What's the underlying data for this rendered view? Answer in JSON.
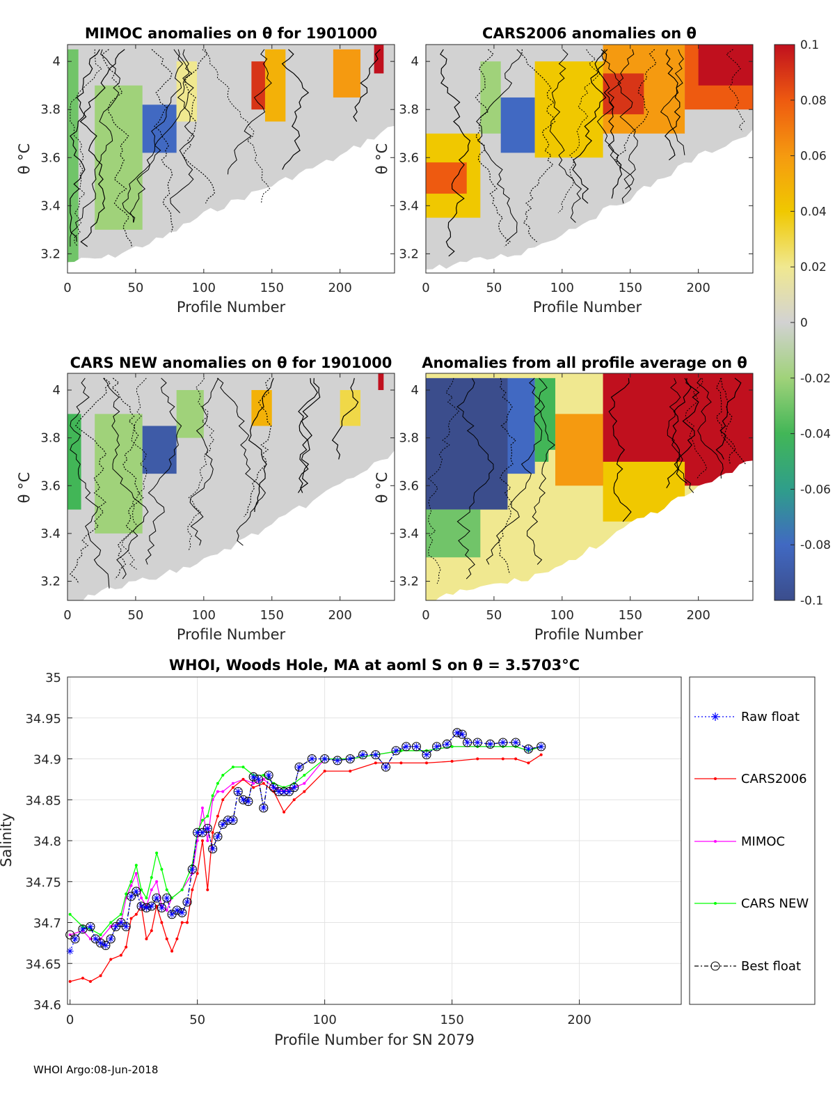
{
  "footer": "WHOI Argo:08-Jun-2018",
  "colorbar": {
    "ticks": [
      "0.1",
      "0.08",
      "0.06",
      "0.04",
      "0.02",
      "0",
      "-0.02",
      "-0.04",
      "-0.06",
      "-0.08",
      "-0.1"
    ],
    "range": [
      -0.1,
      0.1
    ],
    "colors": [
      "#3b4d8c",
      "#4169c2",
      "#2f9e8a",
      "#42b657",
      "#a0d27a",
      "#d2d2d2",
      "#f0e890",
      "#f0c800",
      "#f59a10",
      "#ee5a10",
      "#c0101e"
    ]
  },
  "panels": [
    {
      "title": "MIMOC anomalies on θ  for 1901000",
      "xlabel": "Profile Number",
      "ylabel": "θ °C",
      "xticks": [
        "0",
        "50",
        "100",
        "150",
        "200"
      ],
      "yticks": [
        "4",
        "3.8",
        "3.6",
        "3.4",
        "3.2"
      ]
    },
    {
      "title": "CARS2006 anomalies on θ",
      "xlabel": "Profile Number",
      "ylabel": "θ °C",
      "xticks": [
        "0",
        "50",
        "100",
        "150",
        "200"
      ],
      "yticks": [
        "4",
        "3.8",
        "3.6",
        "3.4",
        "3.2"
      ]
    },
    {
      "title": "CARS NEW anomalies on θ for 1901000",
      "xlabel": "Profile Number",
      "ylabel": "θ °C",
      "xticks": [
        "0",
        "50",
        "100",
        "150",
        "200"
      ],
      "yticks": [
        "4",
        "3.8",
        "3.6",
        "3.4",
        "3.2"
      ]
    },
    {
      "title": "Anomalies from all profile average on θ",
      "xlabel": "Profile Number",
      "ylabel": "θ °C",
      "xticks": [
        "0",
        "50",
        "100",
        "150",
        "200"
      ],
      "yticks": [
        "4",
        "3.8",
        "3.6",
        "3.4",
        "3.2"
      ]
    }
  ],
  "chart_data": [
    {
      "type": "heatmap",
      "title": "MIMOC anomalies on θ  for 1901000",
      "xlabel": "Profile Number",
      "ylabel": "θ °C",
      "xlim": [
        0,
        240
      ],
      "ylim": [
        3.12,
        4.07
      ],
      "clim": [
        -0.1,
        0.1
      ],
      "cells": [
        [
          0,
          240,
          3.12,
          4.07,
          0.0
        ],
        [
          0,
          8,
          3.15,
          4.05,
          -0.03
        ],
        [
          20,
          55,
          3.3,
          3.9,
          -0.02
        ],
        [
          55,
          80,
          3.62,
          3.82,
          -0.08
        ],
        [
          80,
          95,
          3.75,
          4.0,
          0.02
        ],
        [
          135,
          145,
          3.8,
          4.0,
          0.09
        ],
        [
          145,
          160,
          3.75,
          4.05,
          0.05
        ],
        [
          195,
          215,
          3.85,
          4.05,
          0.06
        ],
        [
          225,
          232,
          3.95,
          4.07,
          0.1
        ]
      ],
      "coverage_floor": [
        [
          0,
          3.18
        ],
        [
          30,
          3.2
        ],
        [
          70,
          3.28
        ],
        [
          100,
          3.38
        ],
        [
          150,
          3.5
        ],
        [
          200,
          3.62
        ],
        [
          240,
          3.75
        ]
      ]
    },
    {
      "type": "heatmap",
      "title": "CARS2006 anomalies on θ",
      "xlabel": "Profile Number",
      "ylabel": "θ °C",
      "xlim": [
        0,
        240
      ],
      "ylim": [
        3.12,
        4.07
      ],
      "clim": [
        -0.1,
        0.1
      ],
      "cells": [
        [
          0,
          240,
          3.12,
          4.07,
          0.0
        ],
        [
          0,
          40,
          3.35,
          3.7,
          0.04
        ],
        [
          0,
          30,
          3.45,
          3.58,
          0.08
        ],
        [
          40,
          55,
          3.7,
          4.0,
          -0.02
        ],
        [
          55,
          80,
          3.62,
          3.85,
          -0.08
        ],
        [
          80,
          130,
          3.6,
          4.0,
          0.04
        ],
        [
          130,
          190,
          3.7,
          4.07,
          0.06
        ],
        [
          130,
          160,
          3.78,
          3.95,
          0.09
        ],
        [
          190,
          240,
          3.8,
          4.07,
          0.08
        ],
        [
          200,
          240,
          3.9,
          4.07,
          0.1
        ]
      ],
      "coverage_floor": [
        [
          0,
          3.15
        ],
        [
          30,
          3.18
        ],
        [
          70,
          3.22
        ],
        [
          100,
          3.3
        ],
        [
          150,
          3.45
        ],
        [
          200,
          3.62
        ],
        [
          240,
          3.72
        ]
      ]
    },
    {
      "type": "heatmap",
      "title": "CARS NEW anomalies on θ for 1901000",
      "xlabel": "Profile Number",
      "ylabel": "θ °C",
      "xlim": [
        0,
        240
      ],
      "ylim": [
        3.12,
        4.07
      ],
      "clim": [
        -0.1,
        0.1
      ],
      "cells": [
        [
          0,
          240,
          3.12,
          4.07,
          0.0
        ],
        [
          0,
          10,
          3.5,
          3.9,
          -0.04
        ],
        [
          20,
          55,
          3.4,
          3.9,
          -0.02
        ],
        [
          55,
          80,
          3.65,
          3.85,
          -0.09
        ],
        [
          80,
          100,
          3.8,
          4.0,
          -0.02
        ],
        [
          135,
          150,
          3.85,
          4.0,
          0.05
        ],
        [
          200,
          215,
          3.85,
          4.0,
          0.03
        ],
        [
          228,
          232,
          4.0,
          4.07,
          0.1
        ]
      ],
      "coverage_floor": [
        [
          0,
          3.12
        ],
        [
          30,
          3.18
        ],
        [
          70,
          3.24
        ],
        [
          100,
          3.3
        ],
        [
          150,
          3.45
        ],
        [
          200,
          3.62
        ],
        [
          240,
          3.75
        ]
      ]
    },
    {
      "type": "heatmap",
      "title": "Anomalies from all profile average on θ",
      "xlabel": "Profile Number",
      "ylabel": "θ °C",
      "xlim": [
        0,
        240
      ],
      "ylim": [
        3.12,
        4.07
      ],
      "clim": [
        -0.1,
        0.1
      ],
      "cells": [
        [
          0,
          240,
          3.12,
          4.07,
          0.02
        ],
        [
          0,
          60,
          3.5,
          4.05,
          -0.1
        ],
        [
          60,
          80,
          3.65,
          4.05,
          -0.08
        ],
        [
          80,
          95,
          3.7,
          4.05,
          -0.04
        ],
        [
          0,
          40,
          3.3,
          3.5,
          -0.03
        ],
        [
          90,
          130,
          3.35,
          3.75,
          0.02
        ],
        [
          95,
          130,
          3.6,
          3.9,
          0.06
        ],
        [
          130,
          240,
          3.6,
          4.07,
          0.1
        ],
        [
          130,
          190,
          3.45,
          3.7,
          0.04
        ]
      ],
      "coverage_floor": [
        [
          0,
          3.12
        ],
        [
          30,
          3.18
        ],
        [
          70,
          3.22
        ],
        [
          100,
          3.28
        ],
        [
          150,
          3.45
        ],
        [
          200,
          3.6
        ],
        [
          240,
          3.72
        ]
      ]
    },
    {
      "type": "line",
      "title": "WHOI, Woods Hole, MA at aoml S on θ = 3.5703°C",
      "xlabel": "Profile Number for SN 2079",
      "ylabel": "Salinity",
      "xlim": [
        -1,
        240
      ],
      "ylim": [
        34.6,
        35
      ],
      "xticks": [
        "0",
        "50",
        "100",
        "150",
        "200"
      ],
      "yticks": [
        "35",
        "34.95",
        "34.9",
        "34.85",
        "34.8",
        "34.75",
        "34.7",
        "34.65",
        "34.6"
      ],
      "grid": true,
      "legend_position": "right",
      "series": [
        {
          "name": "Raw float",
          "color": "#0000ff",
          "marker": "asterisk",
          "x": [
            0,
            2,
            5,
            8,
            10,
            12,
            14,
            16,
            18,
            20,
            22,
            24,
            26,
            28,
            30,
            32,
            34,
            36,
            38,
            40,
            42,
            44,
            46,
            48,
            50,
            52,
            54,
            56,
            58,
            60,
            62,
            64,
            66,
            68,
            70,
            72,
            74,
            76,
            78,
            80,
            82,
            84,
            86,
            88,
            90,
            95,
            100,
            105,
            110,
            115,
            120,
            124,
            128,
            132,
            136,
            140,
            144,
            148,
            152,
            154,
            156,
            160,
            165,
            170,
            175,
            180,
            185
          ],
          "y": [
            34.665,
            34.68,
            34.692,
            34.695,
            34.68,
            34.675,
            34.672,
            34.68,
            34.695,
            34.7,
            34.695,
            34.732,
            34.738,
            34.72,
            34.718,
            34.72,
            34.73,
            34.718,
            34.73,
            34.71,
            34.715,
            34.712,
            34.725,
            34.765,
            34.81,
            34.81,
            34.815,
            34.79,
            34.805,
            34.82,
            34.825,
            34.825,
            34.86,
            34.85,
            34.848,
            34.878,
            34.875,
            34.84,
            34.88,
            34.865,
            34.86,
            34.86,
            34.86,
            34.865,
            34.89,
            34.9,
            34.9,
            34.898,
            34.9,
            34.905,
            34.905,
            34.89,
            34.91,
            34.915,
            34.915,
            34.905,
            34.915,
            34.918,
            34.932,
            34.93,
            34.92,
            34.92,
            34.918,
            34.92,
            34.92,
            34.912,
            34.915
          ]
        },
        {
          "name": "CARS2006",
          "color": "#ff0000",
          "marker": "dot",
          "x": [
            0,
            5,
            8,
            12,
            16,
            20,
            22,
            24,
            26,
            28,
            30,
            32,
            34,
            36,
            38,
            40,
            42,
            44,
            46,
            48,
            50,
            52,
            54,
            56,
            58,
            60,
            64,
            68,
            72,
            76,
            80,
            84,
            88,
            92,
            100,
            110,
            120,
            130,
            140,
            150,
            160,
            170,
            175,
            180,
            185
          ],
          "y": [
            34.628,
            34.632,
            34.628,
            34.635,
            34.655,
            34.66,
            34.67,
            34.705,
            34.71,
            34.72,
            34.68,
            34.69,
            34.72,
            34.7,
            34.68,
            34.665,
            34.68,
            34.7,
            34.7,
            34.74,
            34.76,
            34.8,
            34.74,
            34.81,
            34.83,
            34.85,
            34.865,
            34.875,
            34.865,
            34.87,
            34.86,
            34.835,
            34.85,
            34.86,
            34.885,
            34.885,
            34.895,
            34.895,
            34.895,
            34.897,
            34.9,
            34.9,
            34.9,
            34.895,
            34.905
          ]
        },
        {
          "name": "MIMOC",
          "color": "#ff00ff",
          "marker": "dot",
          "x": [
            0,
            5,
            8,
            12,
            16,
            20,
            22,
            24,
            26,
            28,
            30,
            32,
            34,
            36,
            38,
            40,
            44,
            48,
            50,
            52,
            54,
            56,
            58,
            60,
            64,
            68,
            72,
            76,
            80,
            84,
            88,
            92,
            100,
            110,
            120,
            130,
            140,
            150,
            160,
            170,
            175,
            180,
            185
          ],
          "y": [
            34.685,
            34.69,
            34.68,
            34.68,
            34.695,
            34.7,
            34.73,
            34.745,
            34.76,
            34.73,
            34.72,
            34.74,
            34.75,
            34.72,
            34.715,
            34.73,
            34.74,
            34.76,
            34.8,
            34.84,
            34.8,
            34.85,
            34.86,
            34.86,
            34.87,
            34.875,
            34.87,
            34.875,
            34.865,
            34.86,
            34.865,
            34.87,
            34.9,
            34.9,
            34.905,
            34.91,
            34.91,
            34.915,
            34.915,
            34.915,
            34.915,
            34.91,
            34.915
          ]
        },
        {
          "name": "CARS NEW",
          "color": "#00ff00",
          "marker": "dot",
          "x": [
            0,
            5,
            8,
            12,
            16,
            20,
            22,
            24,
            26,
            28,
            30,
            32,
            34,
            36,
            38,
            40,
            44,
            48,
            50,
            52,
            54,
            56,
            58,
            60,
            64,
            68,
            72,
            76,
            80,
            84,
            88,
            92,
            100,
            110,
            120,
            130,
            140,
            150,
            160,
            170,
            175,
            180,
            185
          ],
          "y": [
            34.71,
            34.695,
            34.692,
            34.685,
            34.7,
            34.71,
            34.735,
            34.75,
            34.77,
            34.74,
            34.73,
            34.755,
            34.785,
            34.765,
            34.74,
            34.73,
            34.74,
            34.77,
            34.81,
            34.825,
            34.83,
            34.855,
            34.87,
            34.88,
            34.89,
            34.89,
            34.88,
            34.88,
            34.87,
            34.865,
            34.87,
            34.88,
            34.9,
            34.9,
            34.905,
            34.91,
            34.91,
            34.915,
            34.915,
            34.915,
            34.915,
            34.91,
            34.915
          ]
        },
        {
          "name": "Best float",
          "color": "#000000",
          "marker": "circle",
          "x": [
            0,
            2,
            5,
            8,
            10,
            12,
            14,
            16,
            18,
            20,
            22,
            24,
            26,
            28,
            30,
            32,
            34,
            36,
            38,
            40,
            42,
            44,
            46,
            48,
            50,
            52,
            54,
            56,
            58,
            60,
            62,
            64,
            66,
            68,
            70,
            72,
            74,
            76,
            78,
            80,
            82,
            84,
            86,
            88,
            90,
            95,
            100,
            105,
            110,
            115,
            120,
            124,
            128,
            132,
            136,
            140,
            144,
            148,
            152,
            154,
            156,
            160,
            165,
            170,
            175,
            180,
            185
          ],
          "y": [
            34.685,
            34.68,
            34.692,
            34.695,
            34.68,
            34.675,
            34.672,
            34.68,
            34.695,
            34.7,
            34.695,
            34.732,
            34.738,
            34.72,
            34.718,
            34.72,
            34.73,
            34.718,
            34.73,
            34.71,
            34.715,
            34.712,
            34.725,
            34.765,
            34.81,
            34.81,
            34.815,
            34.79,
            34.805,
            34.82,
            34.825,
            34.825,
            34.86,
            34.85,
            34.848,
            34.878,
            34.875,
            34.84,
            34.88,
            34.865,
            34.86,
            34.86,
            34.86,
            34.865,
            34.89,
            34.9,
            34.9,
            34.898,
            34.9,
            34.905,
            34.905,
            34.89,
            34.91,
            34.915,
            34.915,
            34.905,
            34.915,
            34.918,
            34.932,
            34.93,
            34.92,
            34.92,
            34.918,
            34.92,
            34.92,
            34.912,
            34.915
          ]
        }
      ]
    }
  ]
}
